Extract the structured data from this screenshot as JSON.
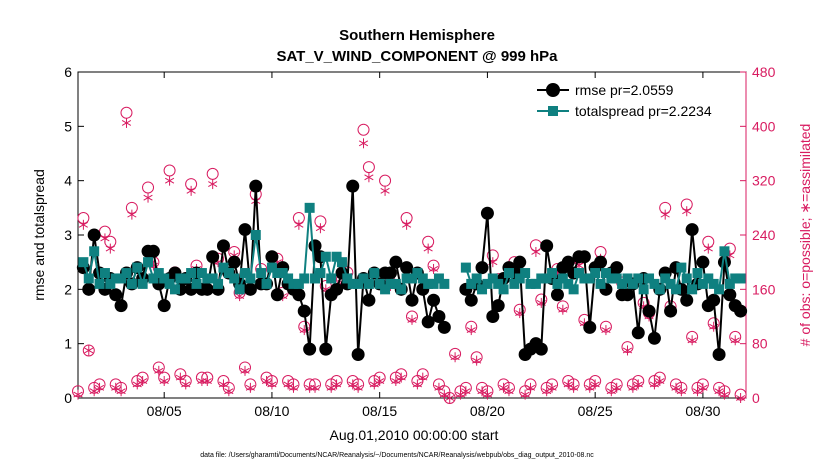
{
  "chart_data": {
    "type": "line",
    "title": [
      "Southern Hemisphere",
      "SAT_V_WIND_COMPONENT @ 999 hPa"
    ],
    "xlabel": "Aug.01,2010 00:00:00 start",
    "ylabel_left": "rmse and totalspread",
    "ylabel_right": "# of obs: o=possible; ∗=assimilated",
    "footnote": "data file: /Users/gharamti/Documents/NCAR/Reanalysis/~/Documents/NCAR/Reanalysis/webpub/obs_diag_output_2010-08.nc",
    "xlim": [
      1.0,
      32.0
    ],
    "ylim_left": [
      0,
      6
    ],
    "ylim_right": [
      0,
      480
    ],
    "x_ticks": [
      5,
      10,
      15,
      20,
      25,
      30
    ],
    "x_tick_labels": [
      "08/05",
      "08/10",
      "08/15",
      "08/20",
      "08/25",
      "08/30"
    ],
    "y_ticks_left": [
      0,
      1,
      2,
      3,
      4,
      5,
      6
    ],
    "y_ticks_right": [
      0,
      80,
      160,
      240,
      320,
      400,
      480
    ],
    "colors": {
      "rmse": "#000000",
      "totalspread": "#0f8080",
      "obs": "#d81b60",
      "axes": "#000000"
    },
    "series": [
      {
        "name": "rmse",
        "legend": "rmse pr=2.0559",
        "marker": "circle",
        "segments": [
          {
            "x": [
              1.25,
              1.5,
              1.75,
              2.0,
              2.25,
              2.5,
              2.75,
              3.0,
              3.25,
              3.5,
              3.75,
              4.0,
              4.25,
              4.5,
              4.75,
              5.0,
              5.25,
              5.5,
              5.75,
              6.0,
              6.25,
              6.5,
              6.75,
              7.0,
              7.25,
              7.5,
              7.75,
              8.0,
              8.25,
              8.5,
              8.75,
              9.0,
              9.25,
              9.5,
              9.75,
              10.0,
              10.25,
              10.5,
              10.75,
              11.0,
              11.25,
              11.5,
              11.75,
              12.0,
              12.25,
              12.5,
              12.75,
              13.0,
              13.25,
              13.5,
              13.75,
              14.0,
              14.25,
              14.5,
              14.75,
              15.0,
              15.25,
              15.5,
              15.75,
              16.0,
              16.25,
              16.5,
              16.75,
              17.0,
              17.25,
              17.5,
              17.75,
              18.0
            ],
            "y": [
              2.4,
              2.0,
              3.0,
              2.3,
              2.0,
              2.2,
              1.9,
              1.7,
              2.3,
              2.1,
              2.4,
              2.2,
              2.7,
              2.7,
              2.1,
              1.7,
              2.2,
              2.3,
              2.0,
              2.2,
              2.0,
              2.3,
              2.0,
              2.0,
              2.6,
              2.0,
              2.8,
              2.3,
              2.5,
              2.1,
              3.1,
              2.0,
              3.9,
              2.1,
              2.1,
              2.6,
              1.9,
              2.4,
              2.1,
              2.0,
              1.9,
              1.6,
              0.9,
              2.8,
              2.6,
              0.9,
              1.9,
              2.0,
              2.3,
              2.1,
              3.9,
              0.8,
              2.2,
              1.8,
              2.3,
              2.1,
              2.3,
              2.3,
              2.5,
              2.0,
              2.4,
              1.8,
              2.3,
              2.0,
              1.4,
              1.8,
              1.5,
              1.3
            ]
          },
          {
            "x": [
              19.0,
              19.25,
              19.5,
              19.75,
              20.0,
              20.25,
              20.5,
              20.75,
              21.0,
              21.25,
              21.5,
              21.75,
              22.0,
              22.25,
              22.5,
              22.75,
              23.0,
              23.25,
              23.5,
              23.75,
              24.0,
              24.25,
              24.5,
              24.75,
              25.0,
              25.25,
              25.5,
              25.75,
              26.0,
              26.25,
              26.5,
              26.75,
              27.0,
              27.25,
              27.5,
              27.75,
              28.0,
              28.25,
              28.5,
              28.75,
              29.0,
              29.25,
              29.5,
              29.75,
              30.0,
              30.25,
              30.5,
              30.75,
              31.0,
              31.25,
              31.5,
              31.75
            ],
            "y": [
              2.0,
              1.8,
              2.1,
              2.4,
              3.4,
              1.5,
              1.7,
              2.2,
              2.4,
              2.3,
              2.5,
              0.8,
              0.9,
              1.0,
              0.9,
              2.8,
              2.2,
              1.9,
              2.4,
              2.5,
              2.3,
              2.6,
              2.6,
              1.3,
              2.4,
              2.5,
              2.0,
              2.3,
              2.4,
              1.9,
              1.9,
              2.1,
              1.2,
              2.2,
              1.6,
              1.1,
              2.0,
              2.3,
              1.6,
              2.4,
              2.0,
              1.8,
              3.1,
              2.1,
              2.5,
              1.7,
              1.8,
              0.8,
              2.5,
              1.9,
              1.7,
              1.6
            ]
          }
        ]
      },
      {
        "name": "totalspread",
        "legend": "totalspread pr=2.2234",
        "marker": "square",
        "segments": [
          {
            "x": [
              1.25,
              1.5,
              1.75,
              2.0,
              2.25,
              2.5,
              2.75,
              3.0,
              3.25,
              3.5,
              3.75,
              4.0,
              4.25,
              4.5,
              4.75,
              5.0,
              5.25,
              5.5,
              5.75,
              6.0,
              6.25,
              6.5,
              6.75,
              7.0,
              7.25,
              7.5,
              7.75,
              8.0,
              8.25,
              8.5,
              8.75,
              9.0,
              9.25,
              9.5,
              9.75,
              10.0,
              10.25,
              10.5,
              10.75,
              11.0,
              11.25,
              11.5,
              11.75,
              12.0,
              12.25,
              12.5,
              12.75,
              13.0,
              13.25,
              13.5,
              13.75,
              14.0,
              14.25,
              14.5,
              14.75,
              15.0,
              15.25,
              15.5,
              15.75,
              16.0,
              16.25,
              16.5,
              16.75,
              17.0,
              17.25,
              17.5,
              17.75,
              18.0
            ],
            "y": [
              2.5,
              2.2,
              2.7,
              2.1,
              2.3,
              2.1,
              2.2,
              2.2,
              2.3,
              2.1,
              2.4,
              2.1,
              2.5,
              2.2,
              2.3,
              2.2,
              2.1,
              2.0,
              2.2,
              2.2,
              2.3,
              2.1,
              2.3,
              2.2,
              2.2,
              2.1,
              2.4,
              2.3,
              2.2,
              2.0,
              2.3,
              2.2,
              3.0,
              2.3,
              2.1,
              2.4,
              2.3,
              2.3,
              2.2,
              2.1,
              2.1,
              2.2,
              3.5,
              2.2,
              2.3,
              2.6,
              2.2,
              2.6,
              2.5,
              2.2,
              2.1,
              2.1,
              2.2,
              2.1,
              2.3,
              2.1,
              2.0,
              2.1,
              2.1,
              2.0,
              2.2,
              2.2,
              2.3,
              2.2,
              2.1,
              2.1,
              2.2,
              2.1
            ]
          },
          {
            "x": [
              19.0,
              19.25,
              19.5,
              19.75,
              20.0,
              20.25,
              20.5,
              20.75,
              21.0,
              21.25,
              21.5,
              21.75,
              22.0,
              22.25,
              22.5,
              22.75,
              23.0,
              23.25,
              23.5,
              23.75,
              24.0,
              24.25,
              24.5,
              24.75,
              25.0,
              25.25,
              25.5,
              25.75,
              26.0,
              26.25,
              26.5,
              26.75,
              27.0,
              27.25,
              27.5,
              27.75,
              28.0,
              28.25,
              28.5,
              28.75,
              29.0,
              29.25,
              29.5,
              29.75,
              30.0,
              30.25,
              30.5,
              30.75,
              31.0,
              31.25,
              31.5,
              31.75
            ],
            "y": [
              2.4,
              2.1,
              2.2,
              2.0,
              2.1,
              2.2,
              2.1,
              2.0,
              2.3,
              2.1,
              2.2,
              2.3,
              2.1,
              2.1,
              2.2,
              2.2,
              2.3,
              2.1,
              2.2,
              2.1,
              2.0,
              2.3,
              2.2,
              2.2,
              2.3,
              2.1,
              2.3,
              2.2,
              2.2,
              2.1,
              2.2,
              2.1,
              2.2,
              2.0,
              2.2,
              2.1,
              2.0,
              2.2,
              2.1,
              2.0,
              2.4,
              2.2,
              2.0,
              2.3,
              2.1,
              2.2,
              2.1,
              2.0,
              2.7,
              2.1,
              2.2,
              2.2
            ]
          }
        ]
      }
    ],
    "obs_counts": {
      "axis": "right",
      "x": [
        1.0,
        1.25,
        1.5,
        1.75,
        2.0,
        2.25,
        2.5,
        2.75,
        3.0,
        3.25,
        3.5,
        3.75,
        4.0,
        4.25,
        4.5,
        4.75,
        5.0,
        5.25,
        5.5,
        5.75,
        6.0,
        6.25,
        6.5,
        6.75,
        7.0,
        7.25,
        7.5,
        7.75,
        8.0,
        8.25,
        8.5,
        8.75,
        9.0,
        9.25,
        9.5,
        9.75,
        10.0,
        10.25,
        10.5,
        10.75,
        11.0,
        11.25,
        11.5,
        11.75,
        12.0,
        12.25,
        12.5,
        12.75,
        13.0,
        13.25,
        13.5,
        13.75,
        14.0,
        14.25,
        14.5,
        14.75,
        15.0,
        15.25,
        15.5,
        15.75,
        16.0,
        16.25,
        16.5,
        16.75,
        17.0,
        17.25,
        17.5,
        17.75,
        18.0,
        18.25,
        18.5,
        18.75,
        19.0,
        19.25,
        19.5,
        19.75,
        20.0,
        20.25,
        20.5,
        20.75,
        21.0,
        21.25,
        21.5,
        21.75,
        22.0,
        22.25,
        22.5,
        22.75,
        23.0,
        23.25,
        23.5,
        23.75,
        24.0,
        24.25,
        24.5,
        24.75,
        25.0,
        25.25,
        25.5,
        25.75,
        26.0,
        26.25,
        26.5,
        26.75,
        27.0,
        27.25,
        27.5,
        27.75,
        28.0,
        28.25,
        28.5,
        28.75,
        29.0,
        29.25,
        29.5,
        29.75,
        30.0,
        30.25,
        30.5,
        30.75,
        31.0,
        31.25,
        31.5,
        31.75
      ],
      "possible": [
        10,
        265,
        70,
        15,
        20,
        245,
        230,
        20,
        15,
        420,
        280,
        25,
        30,
        310,
        200,
        45,
        30,
        335,
        185,
        35,
        25,
        315,
        195,
        30,
        30,
        330,
        205,
        25,
        15,
        215,
        155,
        45,
        20,
        300,
        190,
        30,
        25,
        205,
        155,
        25,
        20,
        265,
        105,
        20,
        20,
        260,
        165,
        20,
        25,
        175,
        185,
        25,
        20,
        395,
        340,
        25,
        30,
        320,
        170,
        30,
        35,
        265,
        120,
        25,
        35,
        230,
        195,
        20,
        10,
        0,
        65,
        10,
        15,
        105,
        60,
        15,
        10,
        210,
        175,
        20,
        15,
        200,
        130,
        10,
        20,
        225,
        145,
        15,
        20,
        190,
        135,
        25,
        20,
        205,
        115,
        20,
        25,
        215,
        105,
        15,
        20,
        170,
        75,
        20,
        25,
        140,
        125,
        25,
        30,
        280,
        135,
        20,
        15,
        285,
        90,
        15,
        20,
        230,
        110,
        15,
        10,
        220,
        90,
        5
      ],
      "assimilated": [
        5,
        255,
        70,
        10,
        15,
        235,
        220,
        15,
        10,
        405,
        270,
        20,
        25,
        295,
        195,
        40,
        25,
        320,
        180,
        30,
        20,
        305,
        190,
        25,
        25,
        315,
        200,
        20,
        10,
        210,
        150,
        40,
        15,
        290,
        185,
        25,
        20,
        200,
        150,
        20,
        15,
        255,
        100,
        15,
        15,
        250,
        160,
        15,
        20,
        170,
        180,
        20,
        15,
        375,
        325,
        20,
        25,
        305,
        165,
        25,
        30,
        255,
        115,
        20,
        30,
        220,
        190,
        15,
        5,
        0,
        60,
        5,
        10,
        100,
        55,
        10,
        5,
        200,
        170,
        15,
        10,
        195,
        125,
        5,
        15,
        215,
        140,
        10,
        15,
        185,
        130,
        20,
        15,
        195,
        110,
        15,
        20,
        205,
        100,
        10,
        15,
        165,
        70,
        15,
        20,
        135,
        120,
        20,
        25,
        270,
        130,
        15,
        10,
        275,
        85,
        10,
        15,
        220,
        105,
        10,
        5,
        210,
        85,
        0
      ]
    }
  }
}
